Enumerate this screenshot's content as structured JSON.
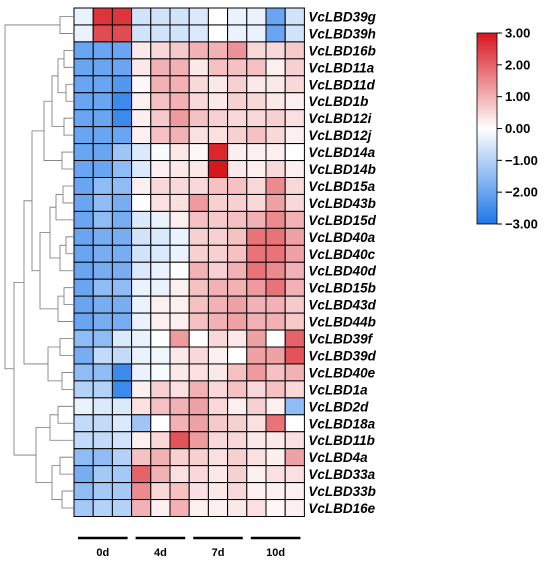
{
  "chart_data": {
    "type": "heatmap",
    "title": "",
    "columns": 12,
    "groups": [
      "0d",
      "4d",
      "7d",
      "10d"
    ],
    "colorbar": {
      "min": -3,
      "max": 3,
      "ticks": [
        "3.00",
        "2.00",
        "1.00",
        "0.00",
        "−1.00",
        "−2.00",
        "−3.00"
      ],
      "colors": {
        "low": "#1e78e8",
        "mid": "#ffffff",
        "high": "#d8161e"
      }
    },
    "rows": [
      {
        "gene": "VcLBD39g",
        "values": [
          -0.3,
          2.6,
          2.6,
          -0.6,
          -0.6,
          -0.6,
          -0.5,
          0.0,
          -0.3,
          -0.3,
          -2.0,
          -0.6
        ]
      },
      {
        "gene": "VcLBD39h",
        "values": [
          -0.3,
          2.3,
          2.3,
          -0.6,
          -0.6,
          -0.6,
          -0.5,
          0.0,
          -0.3,
          -0.3,
          -2.0,
          -0.6
        ]
      },
      {
        "gene": "VcLBD16b",
        "values": [
          -2.0,
          -2.0,
          -2.0,
          0.3,
          0.5,
          0.7,
          1.0,
          1.0,
          1.4,
          0.5,
          0.5,
          0.7
        ]
      },
      {
        "gene": "VcLBD11a",
        "values": [
          -2.0,
          -2.0,
          -2.0,
          0.3,
          1.0,
          1.0,
          0.3,
          0.8,
          0.8,
          0.8,
          0.2,
          0.6
        ]
      },
      {
        "gene": "VcLBD11d",
        "values": [
          -2.0,
          -2.0,
          -2.3,
          0.1,
          1.0,
          1.0,
          0.5,
          0.3,
          0.6,
          0.3,
          0.3,
          0.5
        ]
      },
      {
        "gene": "VcLBD1b",
        "values": [
          -2.0,
          -2.0,
          -2.6,
          0.2,
          0.8,
          1.0,
          0.5,
          0.3,
          0.6,
          0.5,
          0.3,
          0.2
        ]
      },
      {
        "gene": "VcLBD12i",
        "values": [
          -2.0,
          -2.0,
          -2.6,
          0.2,
          0.7,
          1.3,
          0.8,
          0.6,
          0.5,
          0.5,
          0.6,
          0.4
        ]
      },
      {
        "gene": "VcLBD12j",
        "values": [
          -2.0,
          -2.0,
          -2.0,
          0.2,
          0.8,
          1.0,
          0.4,
          0.4,
          0.6,
          0.8,
          0.5,
          0.2
        ]
      },
      {
        "gene": "VcLBD14a",
        "values": [
          -2.0,
          -2.0,
          -1.3,
          -0.5,
          -0.1,
          0.3,
          0.1,
          2.8,
          0.2,
          0.2,
          0.2,
          0.0
        ]
      },
      {
        "gene": "VcLBD14b",
        "values": [
          -2.0,
          -2.0,
          -1.5,
          -0.5,
          0.2,
          0.3,
          0.3,
          3.0,
          0.3,
          0.2,
          0.5,
          0.2
        ]
      },
      {
        "gene": "VcLBD15a",
        "values": [
          -2.0,
          -1.5,
          -1.5,
          0.2,
          0.5,
          0.5,
          0.5,
          0.8,
          0.8,
          0.5,
          1.5,
          0.5
        ]
      },
      {
        "gene": "VcLBD43b",
        "values": [
          -2.0,
          -1.5,
          -1.8,
          0.0,
          0.4,
          0.4,
          1.3,
          0.6,
          0.6,
          0.5,
          1.2,
          0.5
        ]
      },
      {
        "gene": "VcLBD15d",
        "values": [
          -2.0,
          -1.5,
          -1.8,
          -0.5,
          -0.3,
          0.2,
          0.8,
          0.7,
          0.8,
          1.0,
          1.5,
          1.0
        ]
      },
      {
        "gene": "VcLBD40a",
        "values": [
          -2.0,
          -1.8,
          -1.8,
          -0.6,
          -0.5,
          -0.3,
          0.6,
          0.6,
          0.8,
          1.8,
          1.8,
          1.2
        ]
      },
      {
        "gene": "VcLBD40c",
        "values": [
          -2.0,
          -1.8,
          -1.8,
          -0.6,
          -0.5,
          -0.3,
          0.6,
          0.6,
          0.8,
          1.8,
          1.8,
          1.2
        ]
      },
      {
        "gene": "VcLBD40d",
        "values": [
          -2.0,
          -1.8,
          -1.8,
          -0.5,
          -0.3,
          0.0,
          1.0,
          0.6,
          1.0,
          1.8,
          1.5,
          1.0
        ]
      },
      {
        "gene": "VcLBD15b",
        "values": [
          -2.0,
          -1.5,
          -1.5,
          -0.3,
          -0.3,
          0.2,
          0.8,
          1.0,
          1.0,
          1.3,
          1.8,
          1.0
        ]
      },
      {
        "gene": "VcLBD43d",
        "values": [
          -2.0,
          -1.8,
          -1.8,
          -0.3,
          0.2,
          0.2,
          0.8,
          1.0,
          1.2,
          1.0,
          1.0,
          0.7
        ]
      },
      {
        "gene": "VcLBD44b",
        "values": [
          -2.0,
          -1.8,
          -1.8,
          -0.3,
          0.2,
          0.2,
          0.8,
          1.0,
          1.2,
          1.0,
          1.0,
          0.7
        ]
      },
      {
        "gene": "VcLBD39f",
        "values": [
          -1.5,
          -1.5,
          -0.5,
          -0.3,
          0.0,
          1.3,
          0.0,
          0.5,
          0.3,
          1.2,
          0.0,
          2.0
        ]
      },
      {
        "gene": "VcLBD39d",
        "values": [
          -1.8,
          -0.8,
          -0.8,
          -0.3,
          -0.2,
          0.3,
          0.5,
          0.2,
          0.0,
          1.2,
          1.2,
          2.2
        ]
      },
      {
        "gene": "VcLBD40e",
        "values": [
          -1.5,
          -1.5,
          -2.6,
          -0.3,
          -0.1,
          0.3,
          0.4,
          0.3,
          0.8,
          1.3,
          0.8,
          1.0
        ]
      },
      {
        "gene": "VcLBD1a",
        "values": [
          -1.0,
          -1.0,
          -2.6,
          0.2,
          0.6,
          0.4,
          1.0,
          0.5,
          0.8,
          0.5,
          0.8,
          0.5
        ]
      },
      {
        "gene": "VcLBD2d",
        "values": [
          -0.3,
          -0.5,
          -0.5,
          0.4,
          0.8,
          1.0,
          1.2,
          0.5,
          0.2,
          0.6,
          0.2,
          -1.5
        ]
      },
      {
        "gene": "VcLBD18a",
        "values": [
          -0.8,
          -0.8,
          -0.5,
          -1.3,
          0.0,
          1.0,
          1.2,
          0.7,
          0.6,
          0.4,
          1.8,
          0.0
        ]
      },
      {
        "gene": "VcLBD11b",
        "values": [
          -0.8,
          -0.8,
          -0.6,
          0.2,
          0.5,
          2.2,
          1.3,
          0.5,
          0.5,
          0.3,
          0.3,
          0.4
        ]
      },
      {
        "gene": "VcLBD4a",
        "values": [
          -1.5,
          -1.5,
          -1.0,
          0.8,
          1.0,
          0.6,
          0.6,
          0.4,
          0.6,
          0.4,
          0.2,
          1.2
        ]
      },
      {
        "gene": "VcLBD33a",
        "values": [
          -1.8,
          -1.2,
          -1.2,
          2.0,
          1.0,
          0.4,
          0.5,
          0.3,
          0.6,
          0.2,
          0.4,
          0.4
        ]
      },
      {
        "gene": "VcLBD33b",
        "values": [
          -1.5,
          -1.2,
          -1.2,
          1.5,
          0.5,
          0.8,
          0.4,
          0.3,
          0.5,
          0.2,
          0.2,
          0.2
        ]
      },
      {
        "gene": "VcLBD16e",
        "values": [
          -1.2,
          -1.0,
          -1.0,
          1.0,
          0.2,
          1.0,
          0.2,
          0.2,
          0.3,
          0.4,
          0.1,
          0.2
        ]
      }
    ]
  }
}
